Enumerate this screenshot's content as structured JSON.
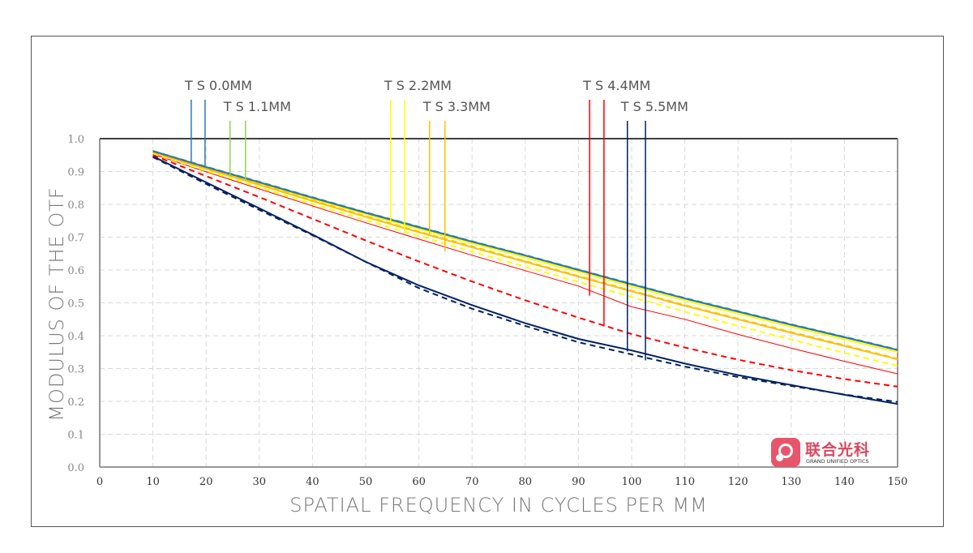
{
  "chart_data": {
    "type": "line",
    "title": "",
    "xlabel": "SPATIAL FREQUENCY IN CYCLES PER MM",
    "ylabel": "MODULUS OF THE OTF",
    "xlim": [
      0,
      150
    ],
    "ylim": [
      0,
      1.0
    ],
    "grid": true,
    "xticks": [
      "0",
      "10",
      "20",
      "30",
      "40",
      "50",
      "60",
      "70",
      "80",
      "90",
      "100",
      "110",
      "120",
      "130",
      "140",
      "150"
    ],
    "yticks": [
      "0.0",
      "0.1",
      "0.2",
      "0.3",
      "0.4",
      "0.5",
      "0.6",
      "0.7",
      "0.8",
      "0.9",
      "1.0"
    ],
    "x": [
      10,
      20,
      30,
      40,
      50,
      60,
      70,
      80,
      90,
      100,
      110,
      120,
      130,
      140,
      150
    ],
    "series": [
      {
        "name": "T 0.0MM",
        "color": "#2e75b6",
        "style": "solid",
        "values": [
          0.962,
          0.913,
          0.867,
          0.82,
          0.774,
          0.73,
          0.686,
          0.644,
          0.6,
          0.556,
          0.513,
          0.473,
          0.433,
          0.395,
          0.356
        ]
      },
      {
        "name": "S 0.0MM",
        "color": "#2e75b6",
        "style": "dashed",
        "values": [
          0.962,
          0.914,
          0.868,
          0.821,
          0.775,
          0.731,
          0.687,
          0.645,
          0.601,
          0.557,
          0.514,
          0.474,
          0.434,
          0.396,
          0.357
        ]
      },
      {
        "name": "T 1.1MM",
        "color": "#92d050",
        "style": "solid",
        "values": [
          0.963,
          0.914,
          0.868,
          0.821,
          0.775,
          0.731,
          0.687,
          0.645,
          0.601,
          0.557,
          0.514,
          0.474,
          0.434,
          0.396,
          0.357
        ]
      },
      {
        "name": "S 1.1MM",
        "color": "#92d050",
        "style": "dashed",
        "values": [
          0.963,
          0.915,
          0.869,
          0.822,
          0.776,
          0.732,
          0.688,
          0.646,
          0.602,
          0.558,
          0.515,
          0.475,
          0.435,
          0.397,
          0.358
        ]
      },
      {
        "name": "T 2.2MM",
        "color": "#ffff00",
        "style": "solid",
        "values": [
          0.96,
          0.911,
          0.864,
          0.816,
          0.77,
          0.725,
          0.681,
          0.638,
          0.594,
          0.55,
          0.507,
          0.467,
          0.427,
          0.389,
          0.35
        ]
      },
      {
        "name": "S 2.2MM",
        "color": "#ffff00",
        "style": "dashed",
        "values": [
          0.955,
          0.902,
          0.852,
          0.801,
          0.752,
          0.704,
          0.656,
          0.61,
          0.564,
          0.518,
          0.473,
          0.43,
          0.388,
          0.348,
          0.308
        ]
      },
      {
        "name": "T 3.3MM",
        "color": "#ffc000",
        "style": "solid",
        "values": [
          0.958,
          0.908,
          0.859,
          0.81,
          0.762,
          0.715,
          0.669,
          0.625,
          0.58,
          0.535,
          0.491,
          0.45,
          0.409,
          0.369,
          0.328
        ]
      },
      {
        "name": "S 3.3MM",
        "color": "#ffc000",
        "style": "dashed",
        "values": [
          0.959,
          0.909,
          0.861,
          0.812,
          0.764,
          0.717,
          0.672,
          0.627,
          0.582,
          0.537,
          0.493,
          0.452,
          0.411,
          0.371,
          0.33
        ]
      },
      {
        "name": "T 4.4MM",
        "color": "#ff0000",
        "style": "solid",
        "values": [
          0.953,
          0.899,
          0.847,
          0.795,
          0.744,
          0.694,
          0.645,
          0.598,
          0.551,
          0.488,
          0.45,
          0.404,
          0.362,
          0.322,
          0.284
        ]
      },
      {
        "name": "S 4.4MM",
        "color": "#ff0000",
        "style": "dashed",
        "values": [
          0.95,
          0.886,
          0.822,
          0.756,
          0.69,
          0.626,
          0.565,
          0.508,
          0.455,
          0.405,
          0.364,
          0.327,
          0.295,
          0.268,
          0.245
        ]
      },
      {
        "name": "T 5.5MM",
        "color": "#002060",
        "style": "solid",
        "values": [
          0.946,
          0.867,
          0.788,
          0.708,
          0.625,
          0.553,
          0.493,
          0.438,
          0.39,
          0.355,
          0.315,
          0.28,
          0.25,
          0.22,
          0.192
        ]
      },
      {
        "name": "S 5.5MM",
        "color": "#002060",
        "style": "dashed",
        "values": [
          0.944,
          0.862,
          0.783,
          0.706,
          0.625,
          0.545,
          0.482,
          0.43,
          0.38,
          0.343,
          0.306,
          0.274,
          0.247,
          0.221,
          0.198
        ]
      }
    ],
    "annotations": [
      {
        "label": "T S 0.0MM",
        "color": "#2e75b6",
        "markers": [
          {
            "x": 17.2,
            "y": 0.93
          },
          {
            "x": 19.8,
            "y": 0.913
          }
        ]
      },
      {
        "label": "T S 1.1MM",
        "color": "#92d050",
        "markers": [
          {
            "x": 24.5,
            "y": 0.886
          },
          {
            "x": 27.4,
            "y": 0.872
          }
        ]
      },
      {
        "label": "T S 2.2MM",
        "color": "#ffff00",
        "markers": [
          {
            "x": 54.7,
            "y": 0.745
          },
          {
            "x": 57.3,
            "y": 0.712
          }
        ]
      },
      {
        "label": "T S 3.3MM",
        "color": "#ffc000",
        "markers": [
          {
            "x": 62.0,
            "y": 0.705
          },
          {
            "x": 64.9,
            "y": 0.656
          }
        ]
      },
      {
        "label": "T S 4.4MM",
        "color": "#ff0000",
        "markers": [
          {
            "x": 92.1,
            "y": 0.522
          },
          {
            "x": 94.8,
            "y": 0.428
          }
        ]
      },
      {
        "label": "T S 5.5MM",
        "color": "#002060",
        "markers": [
          {
            "x": 99.2,
            "y": 0.352
          },
          {
            "x": 102.6,
            "y": 0.325
          }
        ]
      }
    ]
  },
  "logo": {
    "name_cn": "联合光科",
    "name_en": "GRAND UNIFIED OPTICS"
  }
}
